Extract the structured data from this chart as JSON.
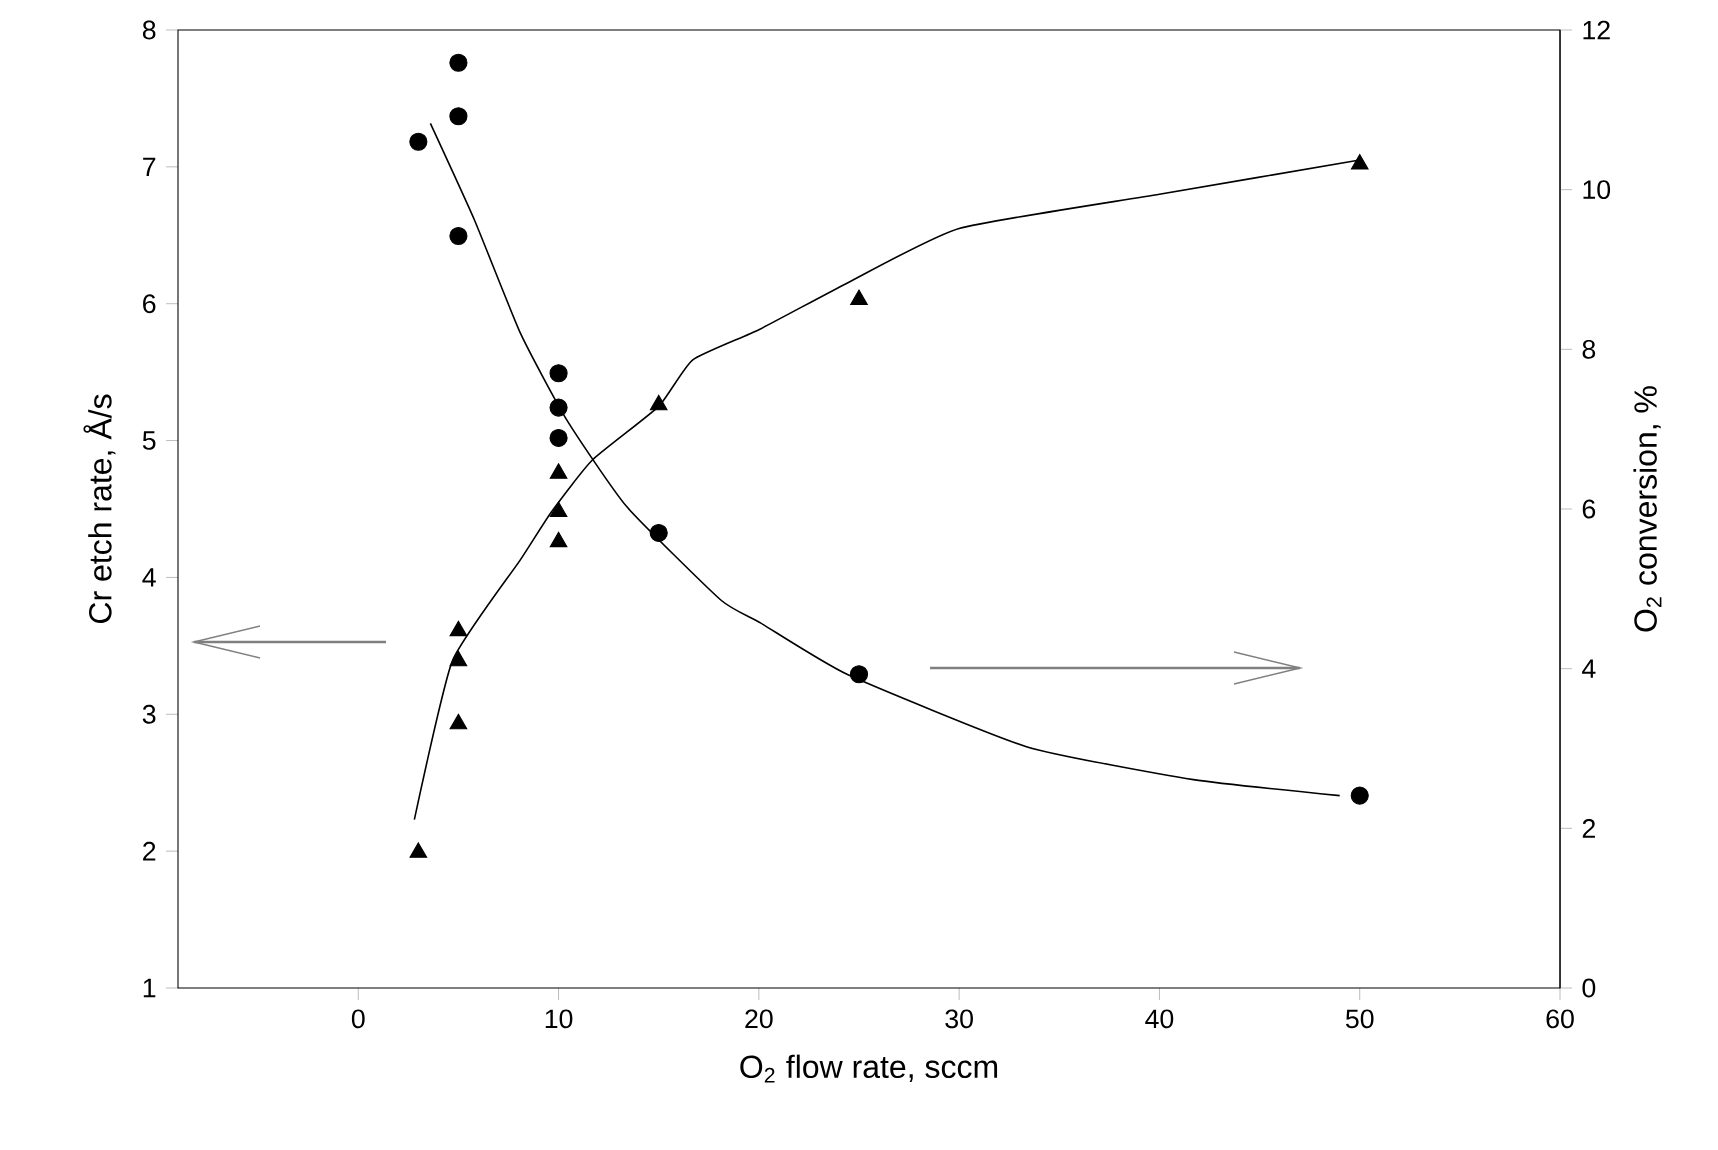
{
  "chart_data": {
    "type": "scatter",
    "xlabel": "O$_{2}$ flow rate, sccm",
    "ylabel": "Cr etch rate, Å/s",
    "y2label": "O$_{2}$ conversion, %",
    "xlim": [
      -9,
      60
    ],
    "xticks": [
      0,
      10,
      20,
      30,
      40,
      50,
      60
    ],
    "ylim": [
      1,
      8
    ],
    "yticks": [
      1,
      2,
      3,
      4,
      5,
      6,
      7,
      8
    ],
    "y2lim": [
      0,
      12
    ],
    "y2ticks": [
      0,
      2,
      4,
      6,
      8,
      10,
      12
    ],
    "series": [
      {
        "marker": "triangle",
        "color": "#000000",
        "x": [
          3,
          5,
          5,
          5,
          10,
          10,
          10,
          15,
          25,
          50
        ],
        "values": [
          1.99,
          2.93,
          3.39,
          3.61,
          4.26,
          4.48,
          4.76,
          5.26,
          6.03,
          7.02
        ]
      },
      {
        "marker": "circle",
        "color": "#000000",
        "axis": "y2",
        "x": [
          3,
          5,
          5,
          5,
          10,
          10,
          10,
          15,
          25,
          50
        ],
        "values": [
          10.6,
          9.42,
          10.92,
          11.59,
          6.89,
          7.27,
          7.7,
          5.7,
          3.93,
          2.41
        ]
      },
      {
        "type": "line",
        "marker": "none",
        "line_style": "solid",
        "color": "#000000",
        "x": [
          2.8,
          4.7,
          8.1,
          9.65,
          11.7,
          15,
          16.7,
          20,
          24.4,
          30,
          40,
          50
        ],
        "values": [
          2.23,
          3.39,
          4.13,
          4.48,
          4.86,
          5.25,
          5.59,
          5.81,
          6.15,
          6.55,
          6.8,
          7.05
        ]
      },
      {
        "type": "line",
        "marker": "none",
        "line_style": "solid",
        "color": "#000000",
        "axis": "y2",
        "x": [
          3.6,
          5.8,
          8.1,
          10.4,
          13.4,
          18.1,
          20.1,
          24.4,
          33.4,
          41.7,
          49
        ],
        "values": [
          10.83,
          9.62,
          8.2,
          7.12,
          6.03,
          4.86,
          4.57,
          3.93,
          3.02,
          2.61,
          2.41
        ]
      }
    ]
  }
}
